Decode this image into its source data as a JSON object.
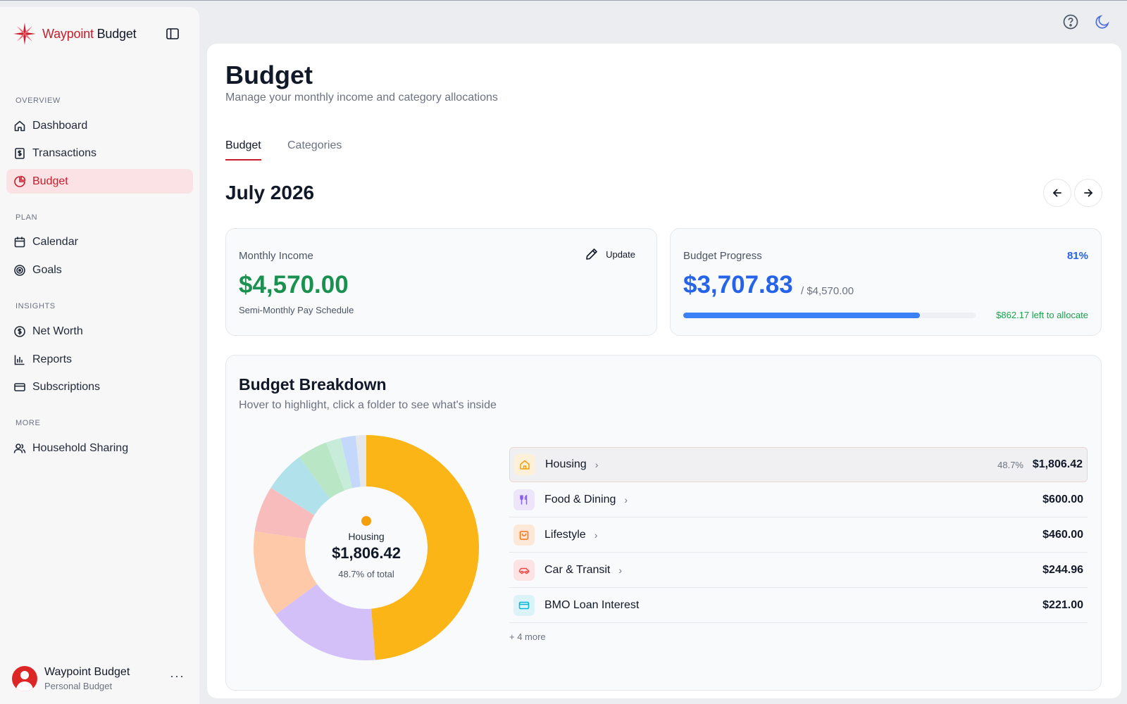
{
  "app": {
    "brand_part1": "Waypoint",
    "brand_part2": "Budget",
    "brand_color": "#c81e2c"
  },
  "sidebar": {
    "sections": [
      {
        "label": "OVERVIEW"
      },
      {
        "label": "PLAN"
      },
      {
        "label": "INSIGHTS"
      },
      {
        "label": "MORE"
      }
    ],
    "items": [
      {
        "label": "Dashboard",
        "icon": "home-icon"
      },
      {
        "label": "Transactions",
        "icon": "receipt-icon"
      },
      {
        "label": "Budget",
        "icon": "pie-icon",
        "active": true
      },
      {
        "label": "Calendar",
        "icon": "calendar-icon"
      },
      {
        "label": "Goals",
        "icon": "target-icon"
      },
      {
        "label": "Net Worth",
        "icon": "dollar-circle-icon"
      },
      {
        "label": "Reports",
        "icon": "bar-chart-icon"
      },
      {
        "label": "Subscriptions",
        "icon": "credit-card-icon"
      },
      {
        "label": "Household Sharing",
        "icon": "users-icon"
      }
    ],
    "user": {
      "name": "Waypoint Budget",
      "subtitle": "Personal Budget",
      "more": "···"
    }
  },
  "header": {
    "title": "Budget",
    "subtitle": "Manage your monthly income and category allocations",
    "tabs": [
      {
        "label": "Budget",
        "active": true
      },
      {
        "label": "Categories",
        "active": false
      }
    ]
  },
  "period": {
    "label": "July 2026"
  },
  "income": {
    "label": "Monthly Income",
    "update_label": "Update",
    "amount": "$4,570.00",
    "schedule": "Semi-Monthly Pay Schedule"
  },
  "progress": {
    "label": "Budget Progress",
    "percent_text": "81%",
    "percent": 81,
    "allocated": "$3,707.83",
    "total": "/ $4,570.00",
    "left": "$862.17 left to allocate"
  },
  "breakdown": {
    "title": "Budget Breakdown",
    "subtitle": "Hover to highlight, click a folder to see what's inside",
    "center": {
      "name": "Housing",
      "value": "$1,806.42",
      "pct": "48.7% of total"
    },
    "rows": [
      {
        "name": "Housing",
        "pct": "48.7%",
        "amount": "$1,806.42",
        "icon": "house-icon",
        "icon_color": "#f59e0b",
        "icon_bg": "#fdf0d9",
        "chevron": "›",
        "highlight": true
      },
      {
        "name": "Food & Dining",
        "pct": "",
        "amount": "$600.00",
        "icon": "utensils-icon",
        "icon_color": "#8b5cf6",
        "icon_bg": "#ede6fb",
        "chevron": "›",
        "highlight": false
      },
      {
        "name": "Lifestyle",
        "pct": "",
        "amount": "$460.00",
        "icon": "shopping-bag-icon",
        "icon_color": "#f97316",
        "icon_bg": "#fde7d6",
        "chevron": "›",
        "highlight": false
      },
      {
        "name": "Car & Transit",
        "pct": "",
        "amount": "$244.96",
        "icon": "car-icon",
        "icon_color": "#ef4444",
        "icon_bg": "#fde3e3",
        "chevron": "›",
        "highlight": false
      },
      {
        "name": "BMO Loan Interest",
        "pct": "",
        "amount": "$221.00",
        "icon": "credit-card-icon",
        "icon_color": "#06b6d4",
        "icon_bg": "#dcf3f8",
        "chevron": "",
        "highlight": false
      }
    ],
    "more": "+ 4 more"
  },
  "chart_data": {
    "type": "pie",
    "variant": "donut",
    "slices": [
      {
        "value": 1806.42,
        "color": "#fbb516"
      },
      {
        "value": 600.0,
        "color": "#d3c0f9"
      },
      {
        "value": 460.0,
        "color": "#fdc9a8"
      },
      {
        "value": 244.96,
        "color": "#f8bcbc"
      },
      {
        "value": 221.0,
        "color": "#b1e2ec"
      },
      {
        "value": 160.0,
        "color": "#b9e6c4"
      },
      {
        "value": 80.0,
        "color": "#c7ecda"
      },
      {
        "value": 80.0,
        "color": "#c3d8fb"
      },
      {
        "value": 55.45,
        "color": "#e5e7eb"
      }
    ],
    "total": 3707.83
  }
}
